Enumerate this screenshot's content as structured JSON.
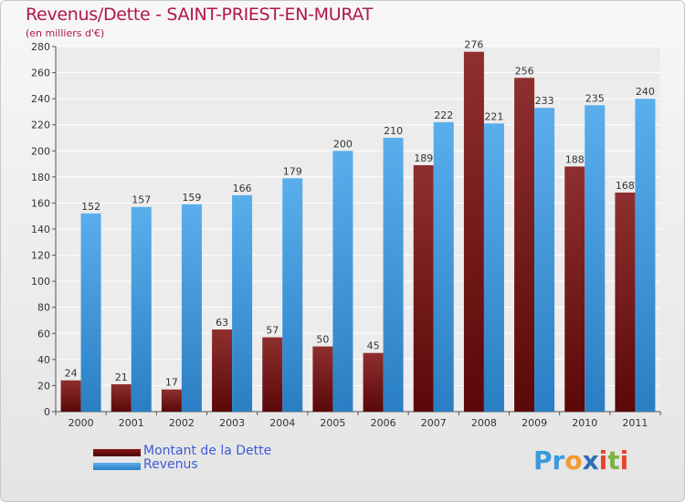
{
  "chart_data": {
    "type": "bar",
    "title": "Revenus/Dette - SAINT-PRIEST-EN-MURAT",
    "subtitle": "(en milliers d'€)",
    "xlabel": "",
    "ylabel": "",
    "ylim": [
      0,
      280
    ],
    "yticks": [
      0,
      20,
      40,
      60,
      80,
      100,
      120,
      140,
      160,
      180,
      200,
      220,
      240,
      260,
      280
    ],
    "grid": true,
    "categories": [
      "2000",
      "2001",
      "2002",
      "2003",
      "2004",
      "2005",
      "2006",
      "2007",
      "2008",
      "2009",
      "2010",
      "2011"
    ],
    "series": [
      {
        "name": "Montant de la Dette",
        "color": "#8b1a1a",
        "values": [
          24,
          21,
          17,
          63,
          57,
          50,
          45,
          189,
          276,
          256,
          188,
          168
        ]
      },
      {
        "name": "Revenus",
        "color": "#4aa3e8",
        "values": [
          152,
          157,
          159,
          166,
          179,
          200,
          210,
          222,
          221,
          233,
          235,
          240
        ]
      }
    ],
    "legend_position": "bottom-left"
  },
  "logo": {
    "text": "Proxiti"
  },
  "colors": {
    "title": "#b0164b",
    "legend_text": "#3e5bd6",
    "grid": "#ffffff",
    "background": "#eeeeee"
  }
}
